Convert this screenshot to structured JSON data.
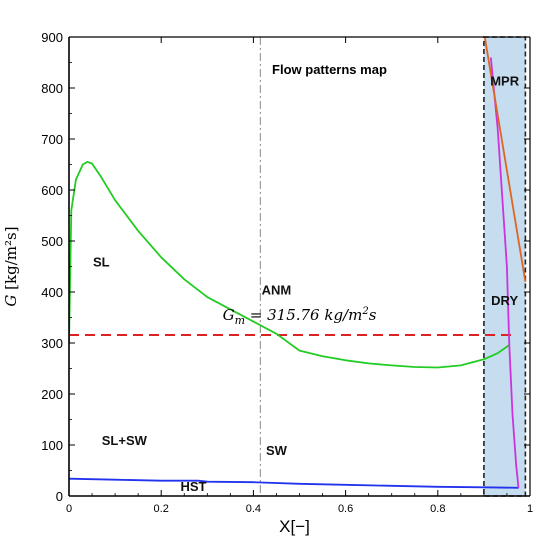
{
  "chart_data": {
    "type": "line",
    "title": "Flow patterns map",
    "xlabel": "X[−]",
    "ylabel_main": "G ",
    "ylabel_unit": "[kg/m²s]",
    "xlim": [
      0,
      1
    ],
    "ylim": [
      0,
      900
    ],
    "x_ticks": [
      0,
      0.2,
      0.4,
      0.6,
      0.8,
      1
    ],
    "x_tick_labels": [
      "0",
      "0.2",
      "0.4",
      "0.6",
      "0.8",
      "1"
    ],
    "y_ticks": [
      0,
      100,
      200,
      300,
      400,
      500,
      600,
      700,
      800,
      900
    ],
    "y_tick_labels": [
      "0",
      "100",
      "200",
      "300",
      "400",
      "500",
      "600",
      "700",
      "800",
      "900"
    ],
    "grid": false,
    "legend": "none",
    "series": [
      {
        "color": "#22cc22",
        "points": [
          [
            0,
            300
          ],
          [
            0.005,
            560
          ],
          [
            0.015,
            620
          ],
          [
            0.03,
            650
          ],
          [
            0.04,
            655
          ],
          [
            0.05,
            652
          ],
          [
            0.07,
            625
          ],
          [
            0.1,
            580
          ],
          [
            0.15,
            520
          ],
          [
            0.2,
            468
          ],
          [
            0.25,
            425
          ],
          [
            0.3,
            390
          ],
          [
            0.35,
            366
          ],
          [
            0.4,
            342
          ],
          [
            0.45,
            318
          ],
          [
            0.5,
            285
          ],
          [
            0.55,
            274
          ],
          [
            0.6,
            266
          ],
          [
            0.65,
            260
          ],
          [
            0.7,
            256
          ],
          [
            0.75,
            253
          ],
          [
            0.8,
            252
          ],
          [
            0.85,
            256
          ],
          [
            0.9,
            268
          ],
          [
            0.93,
            280
          ],
          [
            0.955,
            296
          ]
        ]
      },
      {
        "color": "#2233ee",
        "points": [
          [
            0,
            34
          ],
          [
            0.1,
            32
          ],
          [
            0.2,
            30
          ],
          [
            0.28,
            30
          ],
          [
            0.3,
            28
          ],
          [
            0.4,
            27
          ],
          [
            0.5,
            24
          ],
          [
            0.6,
            22
          ],
          [
            0.7,
            20
          ],
          [
            0.8,
            18
          ],
          [
            0.9,
            17
          ],
          [
            0.975,
            16
          ]
        ]
      },
      {
        "color": "#cc33dd",
        "points": [
          [
            0.915,
            860
          ],
          [
            0.93,
            720
          ],
          [
            0.95,
            450
          ],
          [
            0.955,
            296
          ],
          [
            0.962,
            160
          ],
          [
            0.97,
            60
          ],
          [
            0.975,
            16
          ]
        ]
      },
      {
        "color": "#dd6622",
        "points": [
          [
            0.9,
            910
          ],
          [
            0.99,
            420
          ]
        ]
      }
    ],
    "reference_lines": [
      {
        "type": "horizontal",
        "y": 315.76,
        "color": "#dd2222",
        "style": "dashed",
        "label": "G_m = 315.76 kg/m²s"
      },
      {
        "type": "vertical",
        "x": 0.415,
        "color": "#888888",
        "style": "dash-dot"
      }
    ],
    "shaded_region": {
      "x": [
        0.9,
        0.99
      ],
      "y": [
        0,
        900
      ],
      "color": "#c6dcef",
      "border": "dashed"
    },
    "region_labels": [
      {
        "text": "SL",
        "x": 0.07,
        "y": 450
      },
      {
        "text": "ANM",
        "x": 0.45,
        "y": 395
      },
      {
        "text": "SL+SW",
        "x": 0.12,
        "y": 100
      },
      {
        "text": "SW",
        "x": 0.45,
        "y": 80
      },
      {
        "text": "HST",
        "x": 0.27,
        "y": 10
      },
      {
        "text": "MPR",
        "x": 0.945,
        "y": 805
      },
      {
        "text": "DRY",
        "x": 0.945,
        "y": 375
      }
    ],
    "annotation": {
      "main": "G",
      "subscript": "m",
      "rest": " = 315.76 kg/m",
      "sup": "2",
      "tail": "s",
      "x": 0.5,
      "y": 345
    }
  }
}
